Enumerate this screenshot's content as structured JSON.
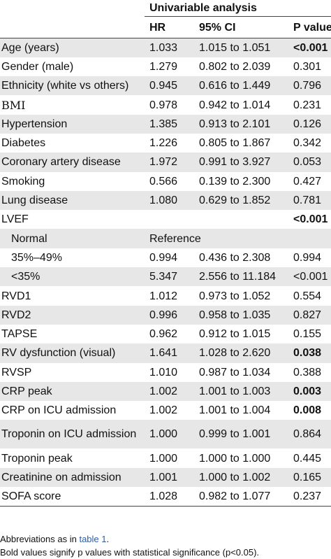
{
  "header": {
    "group_label": "Univariable analysis",
    "col_hr": "HR",
    "col_ci": "95% CI",
    "col_p": "P value"
  },
  "rows": [
    {
      "var": "Age (years)",
      "hr": "1.033",
      "ci": "1.015 to 1.051",
      "p": "<0.001",
      "bold": true
    },
    {
      "var": "Gender (male)",
      "hr": "1.279",
      "ci": "0.802 to 2.039",
      "p": "0.301",
      "bold": false
    },
    {
      "var": "Ethnicity (white vs others)",
      "hr": "0.945",
      "ci": "0.616 to 1.449",
      "p": "0.796",
      "bold": false
    },
    {
      "var": "BMI",
      "hr": "0.978",
      "ci": "0.942 to 1.014",
      "p": "0.231",
      "bold": false,
      "serif": true
    },
    {
      "var": "Hypertension",
      "hr": "1.385",
      "ci": "0.913 to 2.101",
      "p": "0.126",
      "bold": false
    },
    {
      "var": "Diabetes",
      "hr": "1.226",
      "ci": "0.805 to 1.867",
      "p": "0.342",
      "bold": false
    },
    {
      "var": "Coronary artery disease",
      "hr": "1.972",
      "ci": "0.991 to 3.927",
      "p": "0.053",
      "bold": false
    },
    {
      "var": "Smoking",
      "hr": "0.566",
      "ci": "0.139 to 2.300",
      "p": "0.427",
      "bold": false
    },
    {
      "var": "Lung disease",
      "hr": "1.080",
      "ci": "0.629 to 1.852",
      "p": "0.781",
      "bold": false
    },
    {
      "var": "LVEF",
      "hr": "",
      "ci": "",
      "p": "<0.001",
      "bold": true
    },
    {
      "var": "Normal",
      "reference": "Reference",
      "indent": true
    },
    {
      "var": "35%–49%",
      "hr": "0.994",
      "ci": "0.436 to 2.308",
      "p": "0.994",
      "bold": false,
      "indent": true
    },
    {
      "var": "<35%",
      "hr": "5.347",
      "ci": "2.556 to 11.184",
      "p": "<0.001",
      "bold": false,
      "indent": true
    },
    {
      "var": "RVD1",
      "hr": "1.012",
      "ci": "0.973 to 1.052",
      "p": "0.554",
      "bold": false
    },
    {
      "var": "RVD2",
      "hr": "0.996",
      "ci": "0.958 to 1.035",
      "p": "0.827",
      "bold": false
    },
    {
      "var": "TAPSE",
      "hr": "0.962",
      "ci": "0.912 to 1.015",
      "p": "0.155",
      "bold": false
    },
    {
      "var": "RV dysfunction (visual)",
      "hr": "1.641",
      "ci": "1.028 to 2.620",
      "p": "0.038",
      "bold": true
    },
    {
      "var": "RVSP",
      "hr": "1.010",
      "ci": "0.987 to 1.034",
      "p": "0.388",
      "bold": false
    },
    {
      "var": "CRP peak",
      "hr": "1.002",
      "ci": "1.001 to 1.003",
      "p": "0.003",
      "bold": true
    },
    {
      "var": "CRP on ICU admission",
      "hr": "1.002",
      "ci": "1.001 to 1.004",
      "p": "0.008",
      "bold": true
    },
    {
      "var": "Troponin on ICU admission",
      "hr": "1.000",
      "ci": "0.999 to 1.001",
      "p": "0.864",
      "bold": false,
      "tall": true
    },
    {
      "var": "Troponin peak",
      "hr": "1.000",
      "ci": "1.000 to 1.000",
      "p": "0.445",
      "bold": false
    },
    {
      "var": "Creatinine on admission",
      "hr": "1.001",
      "ci": "1.000 to 1.002",
      "p": "0.165",
      "bold": false
    },
    {
      "var": "SOFA score",
      "hr": "1.028",
      "ci": "0.982 to 1.077",
      "p": "0.237",
      "bold": false
    }
  ],
  "notes": {
    "abbrev_prefix": "Abbreviations as in ",
    "abbrev_link": "table 1",
    "abbrev_suffix": ".",
    "bold_note": "Bold values signify p values with statistical significance (p<0.05)."
  }
}
